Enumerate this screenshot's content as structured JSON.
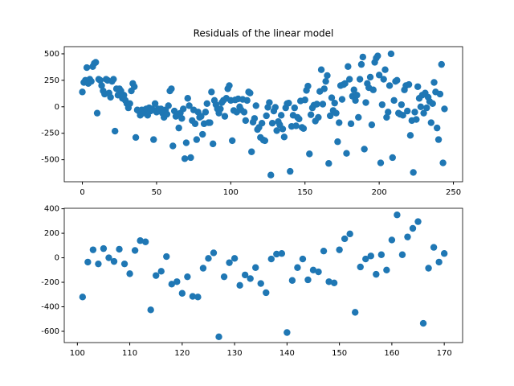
{
  "chart_data": [
    {
      "type": "scatter",
      "title": "Residuals of the linear model",
      "color": "#1f77b4",
      "x": [
        0,
        1,
        2,
        3,
        4,
        5,
        6,
        7,
        8,
        9,
        10,
        11,
        12,
        13,
        14,
        15,
        16,
        17,
        18,
        19,
        20,
        21,
        22,
        23,
        24,
        25,
        26,
        27,
        28,
        29,
        30,
        31,
        32,
        33,
        34,
        35,
        36,
        37,
        38,
        39,
        40,
        41,
        42,
        43,
        44,
        45,
        46,
        47,
        48,
        49,
        50,
        51,
        52,
        53,
        54,
        55,
        56,
        57,
        58,
        59,
        60,
        61,
        62,
        63,
        64,
        65,
        66,
        67,
        68,
        69,
        70,
        71,
        72,
        73,
        74,
        75,
        76,
        77,
        78,
        79,
        80,
        81,
        82,
        83,
        84,
        85,
        86,
        87,
        88,
        89,
        90,
        91,
        92,
        93,
        94,
        95,
        96,
        97,
        98,
        99,
        100,
        101,
        102,
        103,
        104,
        105,
        106,
        107,
        108,
        109,
        110,
        111,
        112,
        113,
        114,
        115,
        116,
        117,
        118,
        119,
        120,
        121,
        122,
        123,
        124,
        125,
        126,
        127,
        128,
        129,
        130,
        131,
        132,
        133,
        134,
        135,
        136,
        137,
        138,
        139,
        140,
        141,
        142,
        143,
        144,
        145,
        146,
        147,
        148,
        149,
        150,
        151,
        152,
        153,
        154,
        155,
        156,
        157,
        158,
        159,
        160,
        161,
        162,
        163,
        164,
        165,
        166,
        167,
        168,
        169,
        170,
        171,
        172,
        173,
        174,
        175,
        176,
        177,
        178,
        179,
        180,
        181,
        182,
        183,
        184,
        185,
        186,
        187,
        188,
        189,
        190,
        191,
        192,
        193,
        194,
        195,
        196,
        197,
        198,
        199,
        200,
        201,
        202,
        203,
        204,
        205,
        206,
        207,
        208,
        209,
        210,
        211,
        212,
        213,
        214,
        215,
        216,
        217,
        218,
        219,
        220,
        221,
        222,
        223,
        224,
        225,
        226,
        227,
        228,
        229,
        230,
        231,
        232,
        233,
        234,
        235,
        236,
        237,
        238,
        239,
        240,
        241,
        242,
        243,
        244
      ],
      "values": [
        140,
        230,
        250,
        370,
        220,
        260,
        240,
        380,
        410,
        420,
        -60,
        260,
        250,
        200,
        150,
        120,
        260,
        250,
        130,
        90,
        240,
        260,
        -230,
        170,
        110,
        170,
        150,
        80,
        110,
        60,
        30,
        -10,
        30,
        150,
        220,
        190,
        -290,
        -30,
        -40,
        -80,
        -30,
        -60,
        -30,
        -20,
        -80,
        -10,
        -40,
        -20,
        -310,
        30,
        -50,
        -20,
        -40,
        -20,
        -60,
        -100,
        -30,
        -70,
        10,
        150,
        170,
        -370,
        -40,
        -90,
        -70,
        -200,
        -60,
        -110,
        -20,
        -490,
        -340,
        80,
        10,
        -480,
        -130,
        -30,
        -160,
        -310,
        -50,
        -100,
        -90,
        -260,
        -160,
        -50,
        30,
        -150,
        -150,
        140,
        -350,
        60,
        20,
        -20,
        -60,
        -20,
        40,
        60,
        -90,
        80,
        170,
        200,
        60,
        -320,
        -35,
        65,
        -50,
        75,
        0,
        -30,
        70,
        -50,
        -130,
        60,
        140,
        130,
        -425,
        -145,
        -110,
        10,
        -215,
        -195,
        -290,
        -155,
        -315,
        -320,
        -85,
        -5,
        40,
        -645,
        -155,
        -40,
        -5,
        -225,
        -140,
        -170,
        -80,
        -210,
        -285,
        -10,
        30,
        35,
        -610,
        -185,
        -80,
        -10,
        -180,
        -100,
        -115,
        55,
        -195,
        -205,
        65,
        155,
        195,
        -445,
        -75,
        -10,
        15,
        -135,
        25,
        -100,
        145,
        350,
        25,
        170,
        240,
        295,
        -535,
        -85,
        85,
        -35,
        35,
        -60,
        -330,
        -150,
        200,
        70,
        210,
        220,
        -440,
        380,
        260,
        -160,
        100,
        160,
        60,
        110,
        -100,
        260,
        400,
        470,
        -400,
        40,
        220,
        180,
        280,
        -170,
        160,
        420,
        460,
        480,
        300,
        -530,
        20,
        260,
        350,
        -100,
        -50,
        200,
        500,
        -480,
        60,
        240,
        250,
        -60,
        -70,
        20,
        -80,
        160,
        200,
        -40,
        210,
        -270,
        -130,
        -620,
        -50,
        -120,
        190,
        80,
        0,
        110,
        -60,
        130,
        -10,
        90,
        50,
        -150,
        30,
        230,
        140,
        -200,
        -310,
        120,
        400,
        -530,
        -20
      ],
      "xlim": [
        -12.2,
        256.2
      ],
      "ylim": [
        -708,
        568
      ],
      "xticks": [
        0,
        50,
        100,
        150,
        200,
        250
      ],
      "yticks": [
        -500,
        -250,
        0,
        250,
        500
      ]
    },
    {
      "type": "scatter",
      "color": "#1f77b4",
      "x": [
        101,
        102,
        103,
        104,
        105,
        106,
        107,
        108,
        109,
        110,
        111,
        112,
        113,
        114,
        115,
        116,
        117,
        118,
        119,
        120,
        121,
        122,
        123,
        124,
        125,
        126,
        127,
        128,
        129,
        130,
        131,
        132,
        133,
        134,
        135,
        136,
        137,
        138,
        139,
        140,
        141,
        142,
        143,
        144,
        145,
        146,
        147,
        148,
        149,
        150,
        151,
        152,
        153,
        154,
        155,
        156,
        157,
        158,
        159,
        160,
        161,
        162,
        163,
        164,
        165,
        166,
        167,
        168,
        169,
        170
      ],
      "values": [
        -320,
        -35,
        65,
        -50,
        75,
        0,
        -30,
        70,
        -50,
        -130,
        60,
        140,
        130,
        -425,
        -145,
        -110,
        10,
        -215,
        -195,
        -290,
        -155,
        -315,
        -320,
        -85,
        -5,
        40,
        -645,
        -155,
        -40,
        -5,
        -225,
        -140,
        -170,
        -80,
        -210,
        -285,
        -10,
        30,
        35,
        -610,
        -185,
        -80,
        -10,
        -180,
        -100,
        -115,
        55,
        -195,
        -205,
        65,
        155,
        195,
        -445,
        -75,
        -10,
        15,
        -135,
        25,
        -100,
        145,
        350,
        25,
        170,
        240,
        295,
        -535,
        -85,
        85,
        -35,
        35
      ],
      "xlim": [
        97.5,
        173.5
      ],
      "ylim": [
        -692,
        404
      ],
      "xticks": [
        100,
        110,
        120,
        130,
        140,
        150,
        160,
        170
      ],
      "yticks": [
        -600,
        -400,
        -200,
        0,
        200,
        400
      ]
    }
  ]
}
